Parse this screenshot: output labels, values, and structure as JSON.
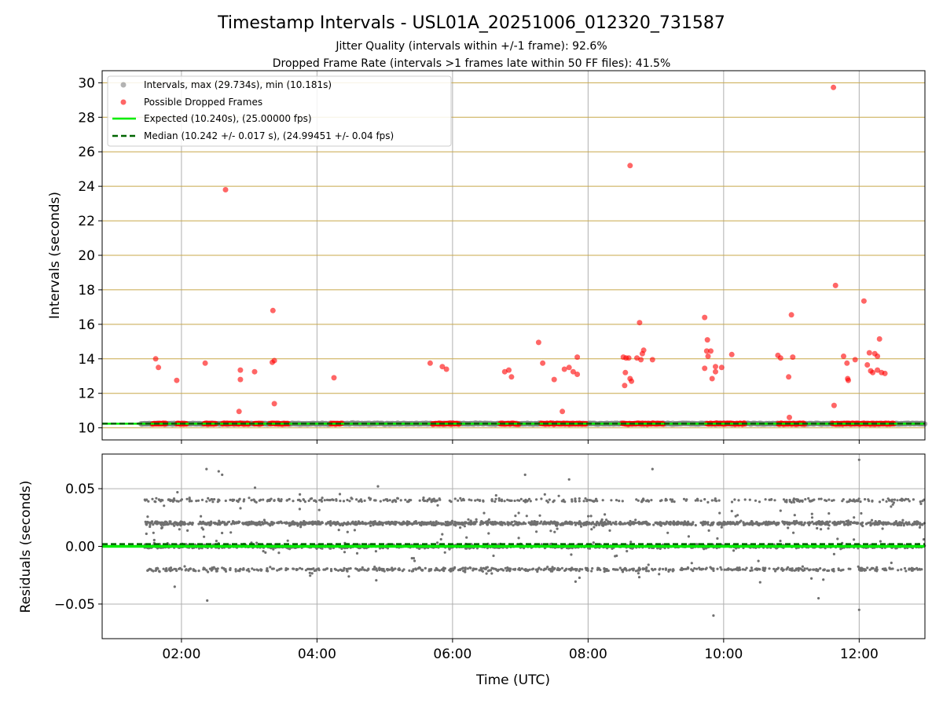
{
  "figure": {
    "title": "Timestamp Intervals - USL01A_20251006_012320_731587",
    "subtitle1": "Jitter Quality (intervals within +/-1 frame): 92.6%",
    "subtitle2": "Dropped Frame Rate (intervals >1 frames late within 50 FF files): 41.5%",
    "xlabel": "Time (UTC)"
  },
  "colors": {
    "intervals": "#808080",
    "dropped": "#ff0000",
    "expected": "#00ee00",
    "median": "#006400",
    "grid": "#b0b0b0",
    "interval_grid": "#c8a84a",
    "residual_points": "#707070"
  },
  "legend": {
    "intervals": "Intervals, max (29.734s), min (10.181s)",
    "dropped": "Possible Dropped Frames",
    "expected": "Expected (10.240s), (25.00000 fps)",
    "median": "Median (10.242 +/- 0.017 s), (24.99451 +/- 0.04 fps)"
  },
  "chart_data": [
    {
      "type": "scatter",
      "name": "intervals",
      "ylabel": "Intervals (seconds)",
      "xlim_hours": [
        0.83,
        12.97
      ],
      "ylim": [
        9.3,
        30.7
      ],
      "yticks": [
        10,
        12,
        14,
        16,
        18,
        20,
        22,
        24,
        26,
        28,
        30
      ],
      "ytick_labels": [
        "10",
        "12",
        "14",
        "16",
        "18",
        "20",
        "22",
        "24",
        "26",
        "28",
        "30"
      ],
      "expected_interval": 10.24,
      "median_interval": 10.242,
      "base_interval_span_hours": [
        1.4,
        12.97
      ],
      "dropped_baseline_segments_hours": [
        [
          1.57,
          1.78
        ],
        [
          1.93,
          2.08
        ],
        [
          2.33,
          2.52
        ],
        [
          2.6,
          3.0
        ],
        [
          3.07,
          3.19
        ],
        [
          3.3,
          3.58
        ],
        [
          4.2,
          4.37
        ],
        [
          5.7,
          6.1
        ],
        [
          6.7,
          6.98
        ],
        [
          7.3,
          7.98
        ],
        [
          8.5,
          9.12
        ],
        [
          9.75,
          10.32
        ],
        [
          10.8,
          11.2
        ],
        [
          11.6,
          12.52
        ]
      ],
      "dropped_points": [
        [
          1.62,
          14.0
        ],
        [
          1.66,
          13.5
        ],
        [
          1.93,
          12.75
        ],
        [
          2.35,
          13.75
        ],
        [
          2.65,
          23.8
        ],
        [
          2.87,
          13.35
        ],
        [
          2.87,
          12.8
        ],
        [
          2.85,
          10.95
        ],
        [
          3.08,
          13.25
        ],
        [
          3.34,
          13.8
        ],
        [
          3.37,
          13.9
        ],
        [
          3.35,
          16.8
        ],
        [
          3.37,
          11.4
        ],
        [
          4.25,
          12.9
        ],
        [
          5.67,
          13.75
        ],
        [
          5.85,
          13.55
        ],
        [
          5.91,
          13.4
        ],
        [
          6.77,
          13.25
        ],
        [
          6.83,
          13.35
        ],
        [
          6.87,
          12.95
        ],
        [
          7.27,
          14.95
        ],
        [
          7.33,
          13.75
        ],
        [
          7.5,
          12.8
        ],
        [
          7.65,
          13.4
        ],
        [
          7.62,
          10.95
        ],
        [
          7.72,
          13.5
        ],
        [
          7.78,
          13.25
        ],
        [
          7.84,
          14.1
        ],
        [
          7.84,
          13.1
        ],
        [
          8.52,
          14.1
        ],
        [
          8.56,
          14.05
        ],
        [
          8.54,
          12.45
        ],
        [
          8.55,
          13.2
        ],
        [
          8.6,
          14.05
        ],
        [
          8.62,
          12.85
        ],
        [
          8.64,
          12.7
        ],
        [
          8.62,
          25.2
        ],
        [
          8.72,
          14.05
        ],
        [
          8.76,
          16.1
        ],
        [
          8.78,
          13.95
        ],
        [
          8.8,
          14.3
        ],
        [
          8.82,
          14.5
        ],
        [
          8.95,
          13.95
        ],
        [
          9.72,
          16.4
        ],
        [
          9.72,
          13.45
        ],
        [
          9.75,
          14.45
        ],
        [
          9.76,
          15.1
        ],
        [
          9.77,
          14.15
        ],
        [
          9.81,
          14.45
        ],
        [
          9.83,
          12.85
        ],
        [
          9.88,
          13.55
        ],
        [
          9.88,
          13.25
        ],
        [
          9.97,
          13.5
        ],
        [
          10.12,
          14.25
        ],
        [
          10.8,
          14.2
        ],
        [
          10.84,
          14.05
        ],
        [
          10.96,
          12.95
        ],
        [
          10.97,
          10.6
        ],
        [
          11.0,
          16.55
        ],
        [
          11.02,
          14.1
        ],
        [
          11.62,
          29.73
        ],
        [
          11.63,
          11.3
        ],
        [
          11.65,
          18.25
        ],
        [
          11.77,
          14.15
        ],
        [
          11.82,
          13.75
        ],
        [
          11.83,
          12.85
        ],
        [
          11.84,
          12.75
        ],
        [
          11.94,
          13.95
        ],
        [
          12.07,
          17.35
        ],
        [
          12.12,
          13.65
        ],
        [
          12.15,
          14.35
        ],
        [
          12.17,
          13.3
        ],
        [
          12.2,
          13.2
        ],
        [
          12.23,
          14.3
        ],
        [
          12.27,
          13.35
        ],
        [
          12.27,
          14.15
        ],
        [
          12.3,
          15.15
        ],
        [
          12.33,
          13.2
        ],
        [
          12.38,
          13.15
        ]
      ]
    },
    {
      "type": "scatter",
      "name": "residuals",
      "ylabel": "Residuals (seconds)",
      "xlabel": "Time (UTC)",
      "xlim_hours": [
        0.83,
        12.97
      ],
      "ylim": [
        -0.08,
        0.08
      ],
      "yticks": [
        -0.05,
        0.0,
        0.05
      ],
      "ytick_labels": [
        "−0.05",
        "0.00",
        "0.05"
      ],
      "xticks_hours": [
        2,
        4,
        6,
        8,
        10,
        12
      ],
      "xtick_labels": [
        "02:00",
        "04:00",
        "06:00",
        "08:00",
        "10:00",
        "12:00"
      ],
      "expected_residual": 0.0,
      "median_residual": 0.002,
      "residual_levels": [
        -0.02,
        0.0,
        0.02,
        0.04
      ],
      "residual_time_span_hours": [
        1.45,
        12.97
      ],
      "approx_point_count": 3600,
      "outliers": [
        [
          2.37,
          0.067
        ],
        [
          2.55,
          0.065
        ],
        [
          2.6,
          0.062
        ],
        [
          2.38,
          -0.047
        ],
        [
          7.07,
          0.062
        ],
        [
          7.72,
          0.058
        ],
        [
          8.95,
          0.067
        ],
        [
          9.85,
          -0.06
        ],
        [
          12.0,
          0.075
        ],
        [
          12.0,
          -0.055
        ],
        [
          11.4,
          -0.045
        ],
        [
          1.9,
          -0.035
        ],
        [
          4.9,
          0.052
        ]
      ]
    }
  ]
}
